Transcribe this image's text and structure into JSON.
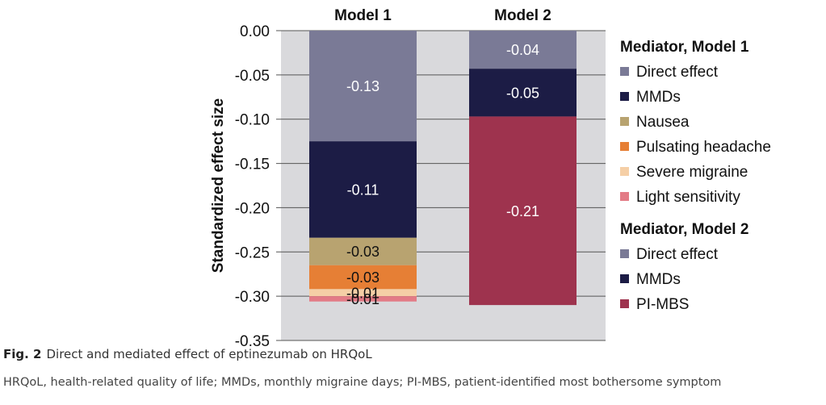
{
  "chart_data": {
    "type": "bar",
    "stacked": true,
    "categories": [
      "Model 1",
      "Model 2"
    ],
    "ylabel": "Standardized effect size",
    "ylim": [
      -0.35,
      0.0
    ],
    "yticks": [
      "0.00",
      "-0.05",
      "-0.10",
      "-0.15",
      "-0.20",
      "-0.25",
      "-0.30",
      "-0.35"
    ],
    "grid": true,
    "legend_position": "right",
    "bars": [
      {
        "category": "Model 1",
        "segments": [
          {
            "name": "Direct effect",
            "value": -0.125,
            "label": "-0.13",
            "color": "#7a7a96",
            "label_color": "#ffffff"
          },
          {
            "name": "MMDs",
            "value": -0.109,
            "label": "-0.11",
            "color": "#1c1c45",
            "label_color": "#ffffff"
          },
          {
            "name": "Nausea",
            "value": -0.031,
            "label": "-0.03",
            "color": "#b8a370",
            "label_color": "#111111"
          },
          {
            "name": "Pulsating headache",
            "value": -0.027,
            "label": "-0.03",
            "color": "#e67f35",
            "label_color": "#111111"
          },
          {
            "name": "Severe migraine",
            "value": -0.008,
            "label": "-0.01",
            "color": "#f5cfa6",
            "label_color": "#111111"
          },
          {
            "name": "Light sensitivity",
            "value": -0.006,
            "label": "-0.01",
            "color": "#e37b86",
            "label_color": "#111111"
          }
        ]
      },
      {
        "category": "Model 2",
        "segments": [
          {
            "name": "Direct effect",
            "value": -0.043,
            "label": "-0.04",
            "color": "#7a7a96",
            "label_color": "#ffffff"
          },
          {
            "name": "MMDs",
            "value": -0.054,
            "label": "-0.05",
            "color": "#1c1c45",
            "label_color": "#ffffff"
          },
          {
            "name": "PI-MBS",
            "value": -0.213,
            "label": "-0.21",
            "color": "#9e334e",
            "label_color": "#ffffff"
          }
        ]
      }
    ],
    "legend": [
      {
        "title": "Mediator, Model 1",
        "items": [
          {
            "label": "Direct effect",
            "color": "#7a7a96"
          },
          {
            "label": "MMDs",
            "color": "#1c1c45"
          },
          {
            "label": "Nausea",
            "color": "#b8a370"
          },
          {
            "label": "Pulsating headache",
            "color": "#e67f35"
          },
          {
            "label": "Severe migraine",
            "color": "#f5cfa6"
          },
          {
            "label": "Light sensitivity",
            "color": "#e37b86"
          }
        ]
      },
      {
        "title": "Mediator, Model 2",
        "items": [
          {
            "label": "Direct effect",
            "color": "#7a7a96"
          },
          {
            "label": "MMDs",
            "color": "#1c1c45"
          },
          {
            "label": "PI-MBS",
            "color": "#9e334e"
          }
        ]
      }
    ]
  },
  "caption": {
    "label": "Fig. 2",
    "text": "Direct and mediated effect of eptinezumab on HRQoL"
  },
  "footnote": "HRQoL, health-related quality of life; MMDs, monthly migraine days; PI-MBS, patient-identified most bothersome symptom",
  "colors": {
    "plot_background": "#d9d9dc",
    "gridline": "#555555"
  }
}
